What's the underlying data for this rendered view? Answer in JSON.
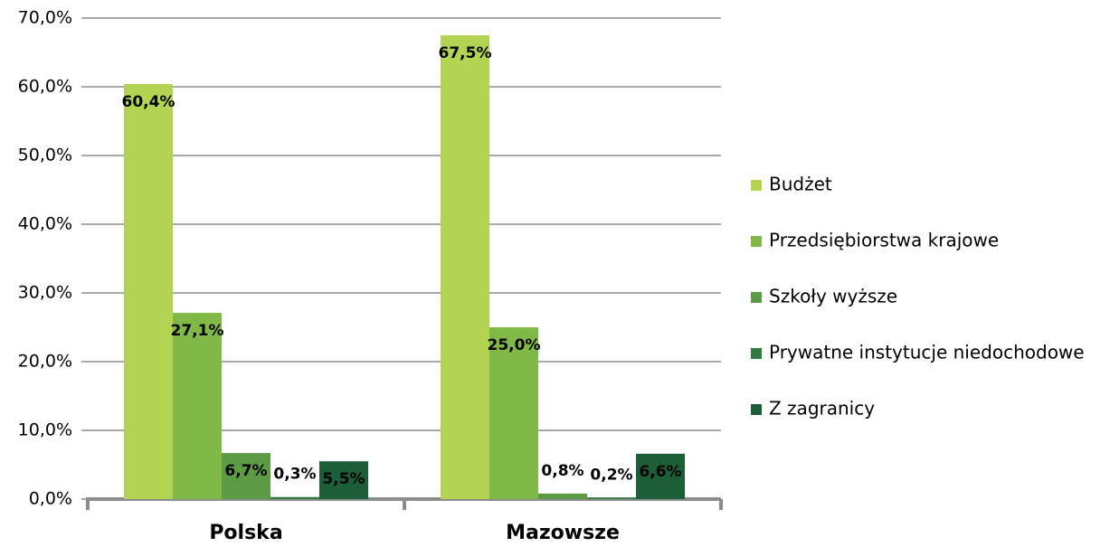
{
  "chart_data": {
    "type": "bar",
    "categories": [
      "Polska",
      "Mazowsze"
    ],
    "series": [
      {
        "name": "Budżet",
        "color": "#b3d452",
        "values": [
          60.4,
          67.5
        ],
        "value_labels": [
          "60,4%",
          "67,5%"
        ]
      },
      {
        "name": "Przedsiębiorstwa krajowe",
        "color": "#80b947",
        "values": [
          27.1,
          25.0
        ],
        "value_labels": [
          "27,1%",
          "25,0%"
        ]
      },
      {
        "name": "Szkoły wyższe",
        "color": "#5c9a45",
        "values": [
          6.7,
          0.8
        ],
        "value_labels": [
          "6,7%",
          "0,8%"
        ]
      },
      {
        "name": "Prywatne instytucje niedochodowe",
        "color": "#2f7d40",
        "values": [
          0.3,
          0.2
        ],
        "value_labels": [
          "0,3%",
          "0,2%"
        ]
      },
      {
        "name": "Z zagranicy",
        "color": "#1b5e37",
        "values": [
          5.5,
          6.6
        ],
        "value_labels": [
          "5,5%",
          "6,6%"
        ]
      }
    ],
    "ylim": [
      0,
      70
    ],
    "yticks": [
      {
        "value": 0,
        "label": "0,0%"
      },
      {
        "value": 10,
        "label": "10,0%"
      },
      {
        "value": 20,
        "label": "20,0%"
      },
      {
        "value": 30,
        "label": "30,0%"
      },
      {
        "value": 40,
        "label": "40,0%"
      },
      {
        "value": 50,
        "label": "50,0%"
      },
      {
        "value": 60,
        "label": "60,0%"
      },
      {
        "value": 70,
        "label": "70,0%"
      }
    ],
    "grid": true,
    "legend": "right"
  }
}
